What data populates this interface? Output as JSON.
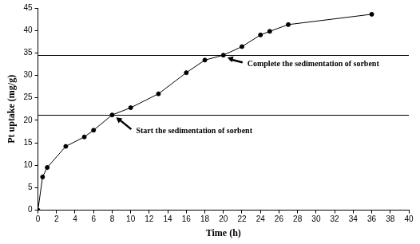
{
  "chart_data": {
    "type": "line",
    "x_label": "Time (h)",
    "y_label": "Pt uptake (mg/g)",
    "x": [
      0,
      0.5,
      1,
      3,
      5,
      6,
      8,
      10,
      13,
      16,
      18,
      20,
      22,
      24,
      25,
      27,
      36
    ],
    "values": [
      0,
      7.4,
      9.5,
      14.2,
      16.3,
      17.8,
      21.2,
      22.8,
      25.9,
      30.6,
      33.4,
      34.5,
      36.4,
      39.0,
      39.8,
      41.3,
      43.6
    ],
    "color": "#000000",
    "marker": "circle",
    "line_style": "solid",
    "xlim": [
      0,
      40
    ],
    "xticks": [
      0,
      2,
      4,
      6,
      8,
      10,
      12,
      14,
      16,
      18,
      20,
      22,
      24,
      26,
      28,
      30,
      32,
      34,
      36,
      38,
      40
    ],
    "ylim": [
      0,
      45
    ],
    "yticks": [
      0,
      5,
      10,
      15,
      20,
      25,
      30,
      35,
      40,
      45
    ],
    "hlines": [
      21.2,
      34.5
    ],
    "annotations": [
      {
        "text": "Start the sedimentation of sorbent",
        "x": 8,
        "y": 21.2
      },
      {
        "text": "Complete the sedimentation of sorbent",
        "x": 20,
        "y": 34.5
      }
    ],
    "grid": false
  }
}
